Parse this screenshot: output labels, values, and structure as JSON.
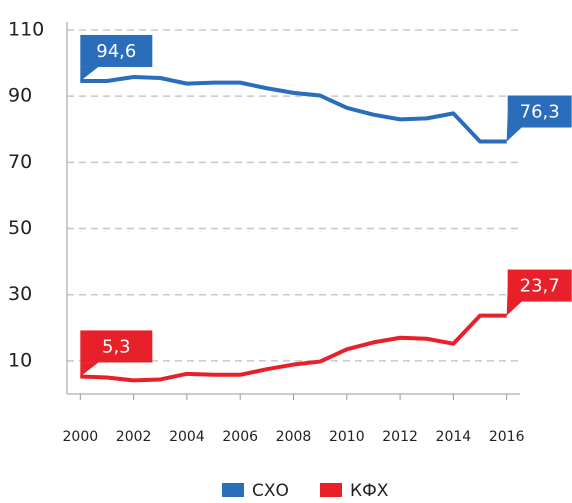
{
  "chart_data": {
    "type": "line",
    "x": [
      2000,
      2001,
      2002,
      2003,
      2004,
      2005,
      2006,
      2007,
      2008,
      2009,
      2010,
      2011,
      2012,
      2013,
      2014,
      2015,
      2016
    ],
    "series": [
      {
        "name": "СХО",
        "color": "#2a6ebb",
        "values": [
          94.6,
          94.6,
          95.8,
          95.5,
          93.8,
          94.1,
          94.1,
          92.4,
          91.0,
          90.2,
          86.5,
          84.4,
          83.0,
          83.3,
          84.8,
          76.3,
          76.3
        ],
        "value_labels": [
          "94,6",
          null,
          null,
          null,
          null,
          null,
          null,
          null,
          null,
          null,
          null,
          null,
          null,
          null,
          null,
          null,
          "76,3"
        ]
      },
      {
        "name": "КФХ",
        "color": "#e8202a",
        "values": [
          5.3,
          5.0,
          4.1,
          4.4,
          6.1,
          5.8,
          5.8,
          7.5,
          8.9,
          9.8,
          13.5,
          15.6,
          17.0,
          16.7,
          15.2,
          23.7,
          23.7
        ],
        "value_labels": [
          "5,3",
          null,
          null,
          null,
          null,
          null,
          null,
          null,
          null,
          null,
          null,
          null,
          null,
          null,
          null,
          null,
          "23,7"
        ]
      }
    ],
    "xlim": [
      1999.5,
      2016.5
    ],
    "xticks": [
      2000,
      2002,
      2004,
      2006,
      2008,
      2010,
      2012,
      2014,
      2016
    ],
    "ylim": [
      0,
      110
    ],
    "yticks": [
      10,
      30,
      50,
      70,
      90,
      110
    ],
    "grid": true,
    "legend": "bottom"
  }
}
